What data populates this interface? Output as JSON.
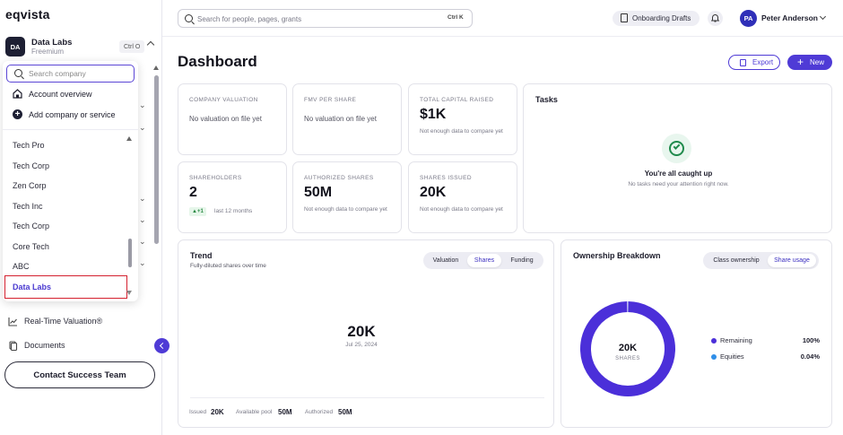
{
  "app": {
    "logo": "eqvista"
  },
  "company": {
    "initials": "DA",
    "name": "Data Labs",
    "plan": "Freemium",
    "shortcut": "Ctrl O"
  },
  "dropdown": {
    "search_placeholder": "Search company",
    "actions": [
      {
        "label": "Account overview",
        "icon": "home-icon"
      },
      {
        "label": "Add company or service",
        "icon": "plus-circle-icon"
      }
    ],
    "companies": [
      "Tech Pro",
      "Tech Corp",
      "Zen Corp",
      "Tech Inc",
      "Tech Corp",
      "Core Tech",
      "ABC",
      "Data Labs"
    ],
    "selected_index": 7
  },
  "nav": [
    {
      "label": "Real-Time Valuation®",
      "icon": "chart-line-icon"
    },
    {
      "label": "Documents",
      "icon": "document-icon"
    }
  ],
  "contact_button": "Contact Success Team",
  "header": {
    "search_placeholder": "Search for people, pages, grants",
    "search_shortcut": "Ctrl K",
    "drafts_label": "Onboarding Drafts",
    "user": {
      "initials": "PA",
      "name": "Peter Anderson"
    }
  },
  "page": {
    "title": "Dashboard",
    "export_label": "Export",
    "new_label": "New"
  },
  "kpis": [
    {
      "label": "COMPANY VALUATION",
      "note": "No valuation on file yet"
    },
    {
      "label": "FMV PER SHARE",
      "note": "No valuation on file yet"
    },
    {
      "label": "TOTAL CAPITAL RAISED",
      "value": "$1K",
      "sub": "Not enough data to compare yet"
    },
    {
      "label": "SHAREHOLDERS",
      "value": "2",
      "delta": "▲+1",
      "delta_note": "last 12 months"
    },
    {
      "label": "AUTHORIZED SHARES",
      "value": "50M",
      "sub": "Not enough data to compare yet"
    },
    {
      "label": "SHARES ISSUED",
      "value": "20K",
      "sub": "Not enough data to compare yet"
    }
  ],
  "tasks": {
    "title": "Tasks",
    "heading": "You're all caught up",
    "sub": "No tasks need your attention right now."
  },
  "trend": {
    "title": "Trend",
    "subtitle": "Fully-diluted shares over time",
    "tabs": [
      "Valuation",
      "Shares",
      "Funding"
    ],
    "active_tab": 1,
    "value": "20K",
    "date": "Jul 25, 2024",
    "footer": [
      {
        "label": "Issued",
        "value": "20K"
      },
      {
        "label": "Available pool",
        "value": "50M"
      },
      {
        "label": "Authorized",
        "value": "50M"
      }
    ]
  },
  "ownership": {
    "title": "Ownership Breakdown",
    "tabs": [
      "Class ownership",
      "Share usage"
    ],
    "active_tab": 1,
    "center_value": "20K",
    "center_label": "SHARES",
    "chart_data": {
      "type": "pie",
      "categories": [
        "Remaining",
        "Equities"
      ],
      "values": [
        100,
        0.04
      ],
      "display": [
        "100%",
        "0.04%"
      ],
      "colors": [
        "#4b2fd9",
        "#2f8ee8"
      ]
    }
  }
}
